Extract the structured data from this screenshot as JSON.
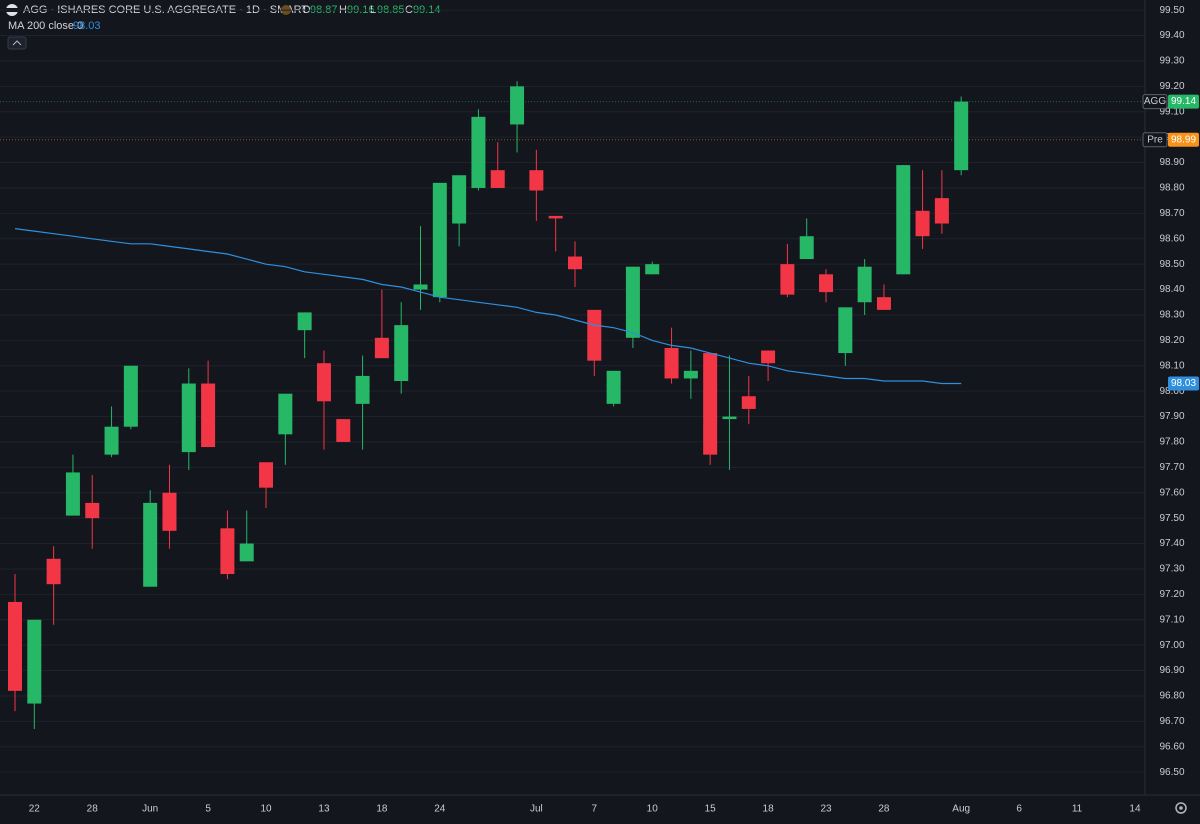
{
  "chart_data": {
    "type": "candlestick",
    "title": "AGG · ISHARES CORE U.S. AGGREGATE · 1D · SMART",
    "ohlc_labels": [
      "O",
      "H",
      "L",
      "C"
    ],
    "categories": [
      null,
      "22",
      null,
      null,
      "28",
      null,
      null,
      "Jun",
      null,
      null,
      "5",
      null,
      null,
      "10",
      null,
      null,
      "13",
      null,
      null,
      "18",
      null,
      null,
      "24",
      null,
      null,
      null,
      null,
      "Jul",
      null,
      null,
      "7",
      null,
      null,
      "10",
      null,
      null,
      "15",
      null,
      null,
      "18",
      null,
      null,
      "23",
      null,
      null,
      "28",
      null,
      null,
      null,
      "Aug",
      null,
      null,
      "6",
      null,
      null,
      "11",
      null,
      null,
      "14"
    ],
    "open": [
      97.17,
      96.77,
      97.34,
      97.51,
      97.56,
      97.75,
      97.86,
      97.23,
      97.6,
      97.76,
      98.03,
      97.46,
      97.33,
      97.72,
      97.83,
      98.24,
      98.11,
      97.89,
      97.95,
      98.21,
      98.04,
      98.4,
      98.37,
      98.66,
      98.8,
      98.87,
      99.05,
      98.87,
      98.69,
      98.53,
      98.32,
      97.95,
      98.21,
      98.46,
      98.17,
      98.05,
      98.15,
      97.89,
      97.98,
      98.16,
      98.5,
      98.52,
      98.46,
      98.15,
      98.35,
      98.37,
      98.46,
      98.71,
      98.76,
      98.87,
      null,
      null,
      null,
      null,
      null,
      null,
      null,
      null,
      null
    ],
    "high": [
      97.28,
      97.1,
      97.39,
      97.75,
      97.67,
      97.94,
      98.1,
      97.61,
      97.71,
      98.09,
      98.12,
      97.53,
      97.53,
      97.72,
      97.99,
      98.31,
      98.16,
      97.89,
      98.14,
      98.4,
      98.35,
      98.65,
      98.82,
      98.85,
      99.11,
      98.98,
      99.22,
      98.95,
      98.69,
      98.59,
      98.32,
      98.08,
      98.49,
      98.51,
      98.25,
      98.16,
      98.15,
      98.14,
      98.06,
      98.16,
      98.58,
      98.68,
      98.48,
      98.33,
      98.52,
      98.42,
      98.89,
      98.87,
      98.87,
      99.16,
      null,
      null,
      null,
      null,
      null,
      null,
      null,
      null,
      null
    ],
    "low": [
      96.74,
      96.67,
      97.08,
      97.51,
      97.38,
      97.74,
      97.85,
      97.23,
      97.38,
      97.69,
      97.78,
      97.26,
      97.33,
      97.54,
      97.71,
      98.13,
      97.77,
      97.8,
      97.77,
      98.13,
      97.99,
      98.32,
      98.35,
      98.57,
      98.79,
      98.8,
      98.94,
      98.67,
      98.55,
      98.41,
      98.06,
      97.94,
      98.17,
      98.46,
      98.03,
      97.97,
      97.71,
      97.69,
      97.87,
      98.04,
      98.37,
      98.52,
      98.35,
      98.1,
      98.3,
      98.32,
      98.46,
      98.56,
      98.62,
      98.85,
      null,
      null,
      null,
      null,
      null,
      null,
      null,
      null,
      null
    ],
    "close": [
      96.82,
      97.1,
      97.24,
      97.68,
      97.5,
      97.86,
      98.1,
      97.56,
      97.45,
      98.03,
      97.78,
      97.28,
      97.4,
      97.62,
      97.99,
      98.31,
      97.96,
      97.8,
      98.06,
      98.13,
      98.26,
      98.42,
      98.82,
      98.85,
      99.08,
      98.8,
      99.2,
      98.79,
      98.68,
      98.48,
      98.12,
      98.08,
      98.49,
      98.5,
      98.05,
      98.08,
      97.75,
      97.9,
      97.93,
      98.11,
      98.38,
      98.61,
      98.39,
      98.33,
      98.49,
      98.32,
      98.89,
      98.61,
      98.66,
      99.14,
      null,
      null,
      null,
      null,
      null,
      null,
      null,
      null,
      null
    ],
    "up_color": "#26b767",
    "down_color": "#f23645",
    "ma": {
      "name": "MA 200 close 0",
      "color": "#2f8fdd",
      "values": [
        98.64,
        98.63,
        98.62,
        98.61,
        98.6,
        98.59,
        98.58,
        98.58,
        98.57,
        98.56,
        98.55,
        98.54,
        98.52,
        98.5,
        98.49,
        98.47,
        98.46,
        98.45,
        98.44,
        98.42,
        98.41,
        98.39,
        98.37,
        98.36,
        98.35,
        98.34,
        98.33,
        98.31,
        98.3,
        98.28,
        98.26,
        98.25,
        98.23,
        98.2,
        98.18,
        98.17,
        98.15,
        98.13,
        98.11,
        98.1,
        98.08,
        98.07,
        98.06,
        98.05,
        98.05,
        98.04,
        98.04,
        98.04,
        98.03,
        98.03,
        null,
        null,
        null,
        null,
        null,
        null,
        null,
        null,
        null
      ]
    },
    "last_price": {
      "label": "AGG",
      "color": "#26b767"
    },
    "pre_market": {
      "label": "Pre",
      "value": 98.99,
      "color": "#f7931a"
    },
    "ylim": [
      96.41,
      99.54
    ],
    "yticks": [
      {
        "value": 96.5,
        "label": "96.50"
      },
      {
        "value": 96.6,
        "label": "96.60"
      },
      {
        "value": 96.7,
        "label": "96.70"
      },
      {
        "value": 96.8,
        "label": "96.80"
      },
      {
        "value": 96.9,
        "label": "96.90"
      },
      {
        "value": 97.0,
        "label": "97.00"
      },
      {
        "value": 97.1,
        "label": "97.10"
      },
      {
        "value": 97.2,
        "label": "97.20"
      },
      {
        "value": 97.3,
        "label": "97.30"
      },
      {
        "value": 97.4,
        "label": "97.40"
      },
      {
        "value": 97.5,
        "label": "97.50"
      },
      {
        "value": 97.6,
        "label": "97.60"
      },
      {
        "value": 97.7,
        "label": "97.70"
      },
      {
        "value": 97.8,
        "label": "97.80"
      },
      {
        "value": 97.9,
        "label": "97.90"
      },
      {
        "value": 98.0,
        "label": "98.00"
      },
      {
        "value": 98.1,
        "label": "98.10"
      },
      {
        "value": 98.2,
        "label": "98.20"
      },
      {
        "value": 98.3,
        "label": "98.30"
      },
      {
        "value": 98.4,
        "label": "98.40"
      },
      {
        "value": 98.5,
        "label": "98.50"
      },
      {
        "value": 98.6,
        "label": "98.60"
      },
      {
        "value": 98.7,
        "label": "98.70"
      },
      {
        "value": 98.8,
        "label": "98.80"
      },
      {
        "value": 98.9,
        "label": "98.90"
      },
      {
        "value": 99.0,
        "label": "99.00"
      },
      {
        "value": 99.1,
        "label": "99.10"
      },
      {
        "value": 99.2,
        "label": "99.20"
      },
      {
        "value": 99.3,
        "label": "99.30"
      },
      {
        "value": 99.4,
        "label": "99.40"
      },
      {
        "value": 99.5,
        "label": "99.50"
      }
    ],
    "grid": true
  }
}
